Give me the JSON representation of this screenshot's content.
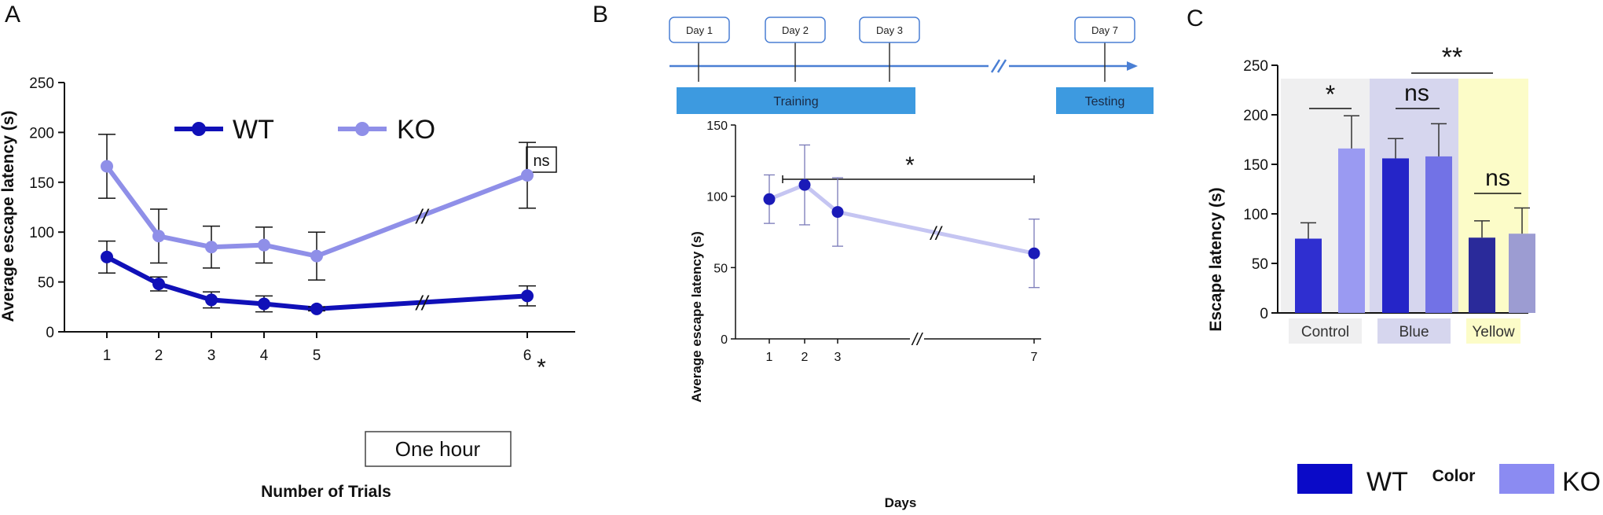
{
  "panels": {
    "a": "A",
    "b": "B",
    "c": "C"
  },
  "chart_data": [
    {
      "panel": "A",
      "type": "line",
      "categories": [
        "1",
        "2",
        "3",
        "4",
        "5",
        "6"
      ],
      "gap_label": "One hour",
      "xlabel": "Number of Trials",
      "ylabel": "Average escape latency (s)",
      "ylim": [
        0,
        250
      ],
      "yticks": [
        0,
        50,
        100,
        150,
        200,
        250
      ],
      "legend": "top",
      "series": [
        {
          "name": "WT",
          "color": "#1010b8",
          "values": [
            75,
            48,
            32,
            28,
            23,
            36
          ],
          "errors": [
            16,
            7,
            8,
            8,
            2,
            10
          ]
        },
        {
          "name": "KO",
          "color": "#8f8fe8",
          "values": [
            166,
            96,
            85,
            87,
            76,
            157
          ],
          "errors": [
            32,
            27,
            21,
            18,
            24,
            33
          ]
        }
      ],
      "annotations": {
        "ns_box": "ns",
        "star": "*",
        "break": "//"
      }
    },
    {
      "panel": "B",
      "type": "line",
      "timeline": {
        "days": [
          "Day 1",
          "Day 2",
          "Day 3",
          "Day 7"
        ],
        "training": "Training",
        "testing": "Testing",
        "break": "//"
      },
      "categories": [
        "1",
        "2",
        "3",
        "7"
      ],
      "xlabel": "Days",
      "ylabel": "Average escape latency (s)",
      "ylim": [
        0,
        150
      ],
      "yticks": [
        0,
        50,
        100,
        150
      ],
      "series": [
        {
          "values": [
            98,
            108,
            89,
            60
          ],
          "errors": [
            17,
            28,
            24,
            24
          ],
          "color": "#1a1ab8"
        }
      ],
      "annotations": {
        "star": "*",
        "break": "//"
      }
    },
    {
      "panel": "C",
      "type": "bar",
      "categories": [
        "Control",
        "Blue",
        "Yellow"
      ],
      "xlabel": "Color",
      "ylabel": "Escape latency (s)",
      "ylim": [
        0,
        250
      ],
      "yticks": [
        0,
        50,
        100,
        150,
        200,
        250
      ],
      "series": [
        {
          "name": "WT",
          "values": [
            75,
            156,
            76
          ],
          "errors": [
            16,
            20,
            17
          ]
        },
        {
          "name": "KO",
          "values": [
            166,
            158,
            80
          ],
          "errors": [
            33,
            33,
            26
          ]
        }
      ],
      "bar_colors": {
        "Control": [
          "#2f2fd0",
          "#9a9af2"
        ],
        "Blue": [
          "#2525c8",
          "#7272e6"
        ],
        "Yellow": [
          "#2a2a9a",
          "#9c9cd2"
        ]
      },
      "backgrounds": {
        "Control": "#efeff0",
        "Blue": "#d6d6ee",
        "Yellow": "#fcfcc8"
      },
      "legend": "bottom",
      "legend_colors": {
        "WT": "#0a0ac8",
        "KO": "#8b8bf2"
      },
      "annotations": {
        "control": "*",
        "blue": "ns",
        "yellow": "ns",
        "blue_vs_yellow": "**"
      }
    }
  ]
}
